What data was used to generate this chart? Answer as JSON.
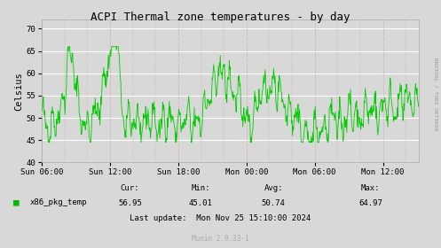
{
  "title": "ACPI Thermal zone temperatures - by day",
  "ylabel": "Celsius",
  "bg_color": "#d8d8d8",
  "plot_bg_color": "#d8d8d8",
  "line_color": "#00cc00",
  "yticks": [
    40,
    45,
    50,
    55,
    60,
    65,
    70
  ],
  "ylim": [
    40,
    72
  ],
  "xtick_labels": [
    "Sun 06:00",
    "Sun 12:00",
    "Sun 18:00",
    "Mon 00:00",
    "Mon 06:00",
    "Mon 12:00"
  ],
  "legend_label": "x86_pkg_temp",
  "legend_color": "#00bb00",
  "stats_cur": "56.95",
  "stats_min": "45.01",
  "stats_avg": "50.74",
  "stats_max": "64.97",
  "last_update": "Last update:  Mon Nov 25 15:10:00 2024",
  "munin_version": "Munin 2.0.33-1",
  "watermark": "RRDTOOL / TOBI OETIKER",
  "total_hours": 33.17,
  "tick_hours": [
    0,
    6,
    12,
    18,
    24,
    30
  ]
}
